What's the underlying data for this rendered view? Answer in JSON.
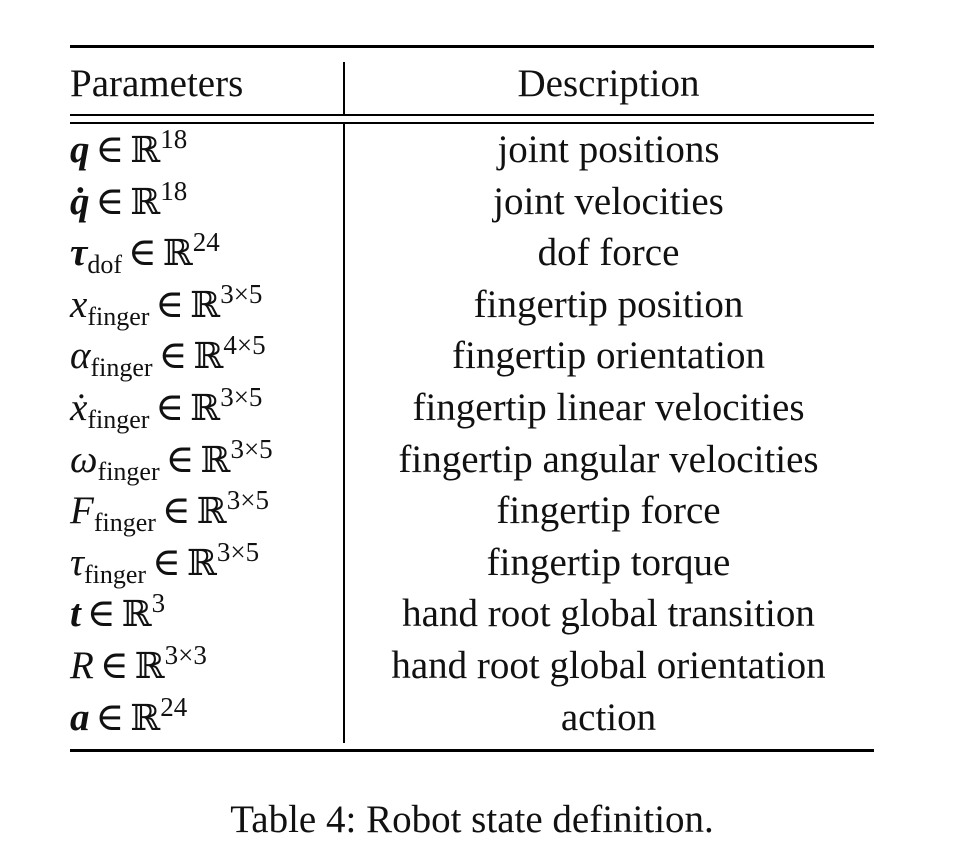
{
  "table": {
    "header": {
      "parameters": "Parameters",
      "description": "Description"
    },
    "rows": [
      {
        "symbol": "q",
        "bold": true,
        "subscript": "",
        "superscript": "18",
        "description": "joint positions"
      },
      {
        "symbol": "q̇",
        "bold": true,
        "subscript": "",
        "superscript": "18",
        "description": "joint velocities"
      },
      {
        "symbol": "τ",
        "bold": true,
        "subscript": "dof",
        "superscript": "24",
        "description": "dof force"
      },
      {
        "symbol": "x",
        "bold": false,
        "subscript": "finger",
        "superscript": "3×5",
        "description": "fingertip position"
      },
      {
        "symbol": "α",
        "bold": false,
        "subscript": "finger",
        "superscript": "4×5",
        "description": "fingertip orientation"
      },
      {
        "symbol": "ẋ",
        "bold": false,
        "subscript": "finger",
        "superscript": "3×5",
        "description": "fingertip linear velocities"
      },
      {
        "symbol": "ω",
        "bold": false,
        "subscript": "finger",
        "superscript": "3×5",
        "description": "fingertip angular velocities"
      },
      {
        "symbol": "F",
        "bold": false,
        "subscript": "finger",
        "superscript": "3×5",
        "description": "fingertip force"
      },
      {
        "symbol": "τ",
        "bold": false,
        "subscript": "finger",
        "superscript": "3×5",
        "description": "fingertip torque"
      },
      {
        "symbol": "t",
        "bold": true,
        "subscript": "",
        "superscript": "3",
        "description": "hand root global transition"
      },
      {
        "symbol": "R",
        "bold": false,
        "subscript": "",
        "superscript": "3×3",
        "description": "hand root global orientation"
      },
      {
        "symbol": "a",
        "bold": true,
        "subscript": "",
        "superscript": "24",
        "description": "action"
      }
    ],
    "relation": "∈",
    "set": "ℝ"
  },
  "caption": "Table 4: Robot state definition."
}
